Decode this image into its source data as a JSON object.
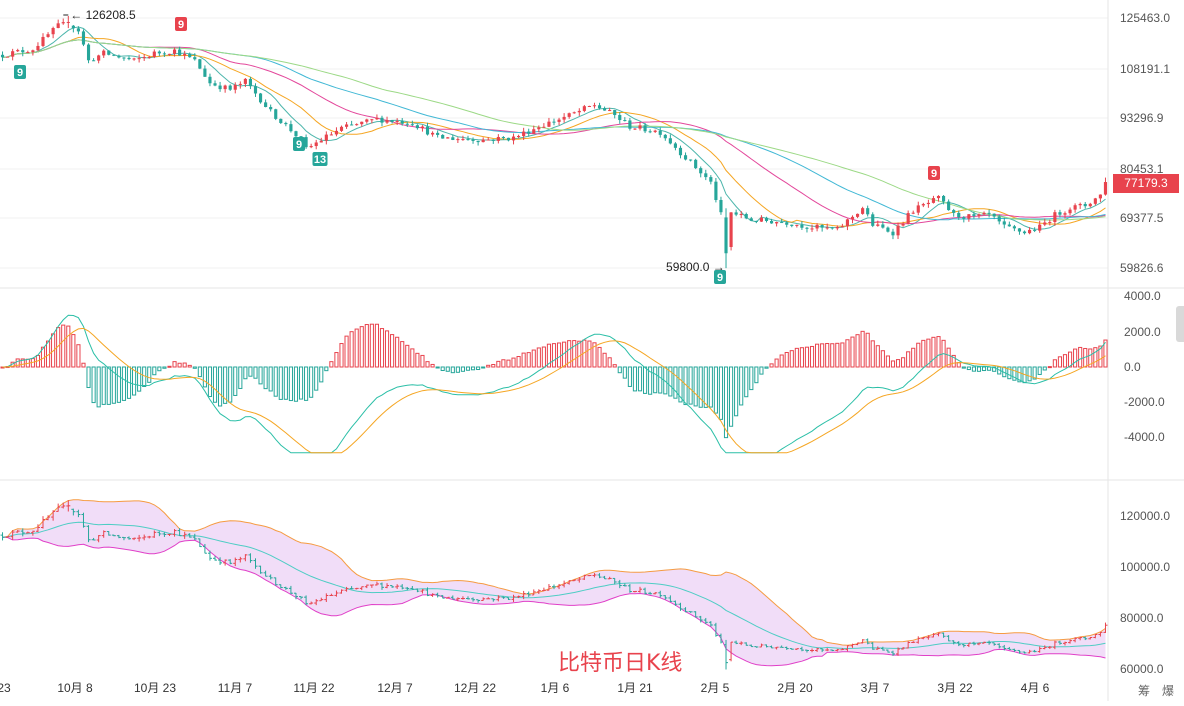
{
  "chart_data": {
    "type": "candlestick",
    "overlay_title": "比特币日K线",
    "last_price_label": "77179.3",
    "corner_labels": [
      "筹",
      "爆"
    ],
    "x_ticks": [
      "23",
      "10月 8",
      "10月 23",
      "11月 7",
      "11月 22",
      "12月 7",
      "12月 22",
      "1月 6",
      "1月 21",
      "2月 5",
      "2月 20",
      "3月 7",
      "3月 22",
      "4月 6"
    ],
    "colors": {
      "up": "#e8434d",
      "down": "#26a69a",
      "ma1": "#4db6ac",
      "ma2": "#f5a623",
      "ma3": "#e3479b",
      "ma4": "#41b8d5",
      "ma5": "#9cd986",
      "bb_upper": "#f59b42",
      "bb_lower": "#e040c8",
      "bb_mid": "#4ecdc4",
      "bb_fill": "#efd7f7",
      "macd_dif": "#2bbfa7",
      "macd_dea": "#f5a623"
    },
    "price_axis": {
      "ticks": [
        "125463.0",
        "108191.1",
        "93296.9",
        "80453.1",
        "69377.5",
        "59826.6"
      ]
    },
    "annotations": {
      "high_label": "126208.5",
      "low_label": "59800.0"
    },
    "td_markers": [
      {
        "label": "9",
        "kind": "down",
        "x_index": 0
      },
      {
        "label": "9",
        "kind": "up",
        "x_index": 1
      },
      {
        "label": "9",
        "kind": "down",
        "x_index": 2
      },
      {
        "label": "13",
        "kind": "down",
        "x_index": 3
      },
      {
        "label": "9",
        "kind": "down",
        "x_index": 4
      },
      {
        "label": "9",
        "kind": "up",
        "x_index": 5
      }
    ],
    "price_anchors": [
      {
        "d": 0,
        "p": 112500
      },
      {
        "d": 6,
        "p": 114500
      },
      {
        "d": 11,
        "p": 122500
      },
      {
        "d": 13,
        "p": 123500
      },
      {
        "d": 15,
        "p": 121000
      },
      {
        "d": 17,
        "p": 110500
      },
      {
        "d": 20,
        "p": 113000
      },
      {
        "d": 26,
        "p": 110500
      },
      {
        "d": 30,
        "p": 113000
      },
      {
        "d": 34,
        "p": 114000
      },
      {
        "d": 38,
        "p": 110500
      },
      {
        "d": 41,
        "p": 103500
      },
      {
        "d": 45,
        "p": 101500
      },
      {
        "d": 48,
        "p": 104000
      },
      {
        "d": 53,
        "p": 95000
      },
      {
        "d": 59,
        "p": 87500
      },
      {
        "d": 60,
        "p": 85000
      },
      {
        "d": 63,
        "p": 87500
      },
      {
        "d": 67,
        "p": 90500
      },
      {
        "d": 70,
        "p": 91500
      },
      {
        "d": 74,
        "p": 93000
      },
      {
        "d": 81,
        "p": 92000
      },
      {
        "d": 86,
        "p": 88000
      },
      {
        "d": 95,
        "p": 87500
      },
      {
        "d": 101,
        "p": 88000
      },
      {
        "d": 106,
        "p": 91000
      },
      {
        "d": 112,
        "p": 94000
      },
      {
        "d": 117,
        "p": 97000
      },
      {
        "d": 121,
        "p": 94000
      },
      {
        "d": 124,
        "p": 91000
      },
      {
        "d": 130,
        "p": 89500
      },
      {
        "d": 135,
        "p": 83000
      },
      {
        "d": 140,
        "p": 77000
      },
      {
        "d": 142,
        "p": 70000
      },
      {
        "d": 143,
        "p": 63500
      },
      {
        "d": 144,
        "p": 70500
      },
      {
        "d": 148,
        "p": 69000
      },
      {
        "d": 155,
        "p": 68500
      },
      {
        "d": 160,
        "p": 67500
      },
      {
        "d": 165,
        "p": 67000
      },
      {
        "d": 170,
        "p": 71500
      },
      {
        "d": 172,
        "p": 68000
      },
      {
        "d": 176,
        "p": 66500
      },
      {
        "d": 180,
        "p": 71000
      },
      {
        "d": 183,
        "p": 72500
      },
      {
        "d": 185,
        "p": 73500
      },
      {
        "d": 188,
        "p": 70000
      },
      {
        "d": 192,
        "p": 69500
      },
      {
        "d": 195,
        "p": 70000
      },
      {
        "d": 198,
        "p": 67500
      },
      {
        "d": 202,
        "p": 66500
      },
      {
        "d": 205,
        "p": 67500
      },
      {
        "d": 208,
        "p": 70000
      },
      {
        "d": 211,
        "p": 71500
      },
      {
        "d": 214,
        "p": 72000
      },
      {
        "d": 218,
        "p": 75000
      }
    ],
    "macd_axis": {
      "ticks": [
        "4000.0",
        "2000.0",
        "0.0",
        "-2000.0",
        "-4000.0"
      ]
    },
    "boll_axis": {
      "ticks": [
        "120000.0",
        "100000.0",
        "80000.0",
        "60000.0"
      ]
    }
  }
}
